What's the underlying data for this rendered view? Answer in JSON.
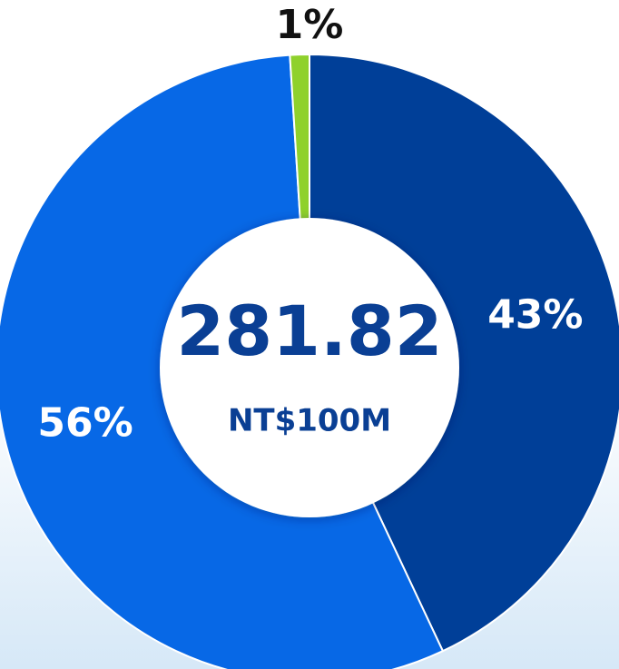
{
  "chart_data": {
    "type": "donut",
    "values": [
      43,
      56,
      1
    ],
    "value_labels": [
      "43%",
      "56%",
      "1%"
    ],
    "colors": [
      "#003f98",
      "#0768e6",
      "#8fd12c"
    ],
    "center_value": 281.82,
    "center_unit": "NT$100M"
  }
}
